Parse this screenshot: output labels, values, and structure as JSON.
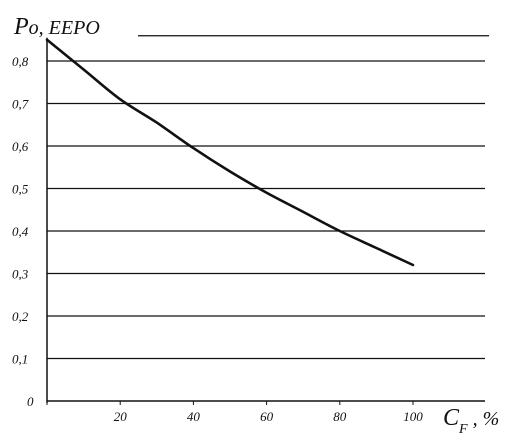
{
  "chart_data": {
    "type": "line",
    "title": "",
    "ylabel": {
      "main": "P",
      "sub": "o",
      "rest": ", EEPO"
    },
    "xlabel": {
      "main": "C",
      "sub": "F",
      "rest": " , %"
    },
    "xlim": [
      0,
      100
    ],
    "ylim": [
      0,
      0.85
    ],
    "x_ticks": [
      0,
      20,
      40,
      60,
      80,
      100
    ],
    "x_tick_labels": [
      "",
      "20",
      "40",
      "60",
      "80",
      "100"
    ],
    "y_ticks": [
      0,
      0.1,
      0.2,
      0.3,
      0.4,
      0.5,
      0.6,
      0.7,
      0.8
    ],
    "y_tick_labels": [
      "0",
      "0,1",
      "0,2",
      "0,3",
      "0,4",
      "0,5",
      "0,6",
      "0,7",
      "0,8"
    ],
    "grid": {
      "horizontal": true,
      "vertical": false
    },
    "legend": "none",
    "series": [
      {
        "x": [
          0,
          10,
          20,
          30,
          40,
          50,
          60,
          70,
          80,
          90,
          100
        ],
        "values": [
          0.85,
          0.78,
          0.71,
          0.655,
          0.595,
          0.54,
          0.49,
          0.445,
          0.4,
          0.36,
          0.32
        ]
      }
    ],
    "colors": {
      "line": "#111111",
      "grid": "#111111",
      "axis": "#111111"
    }
  }
}
